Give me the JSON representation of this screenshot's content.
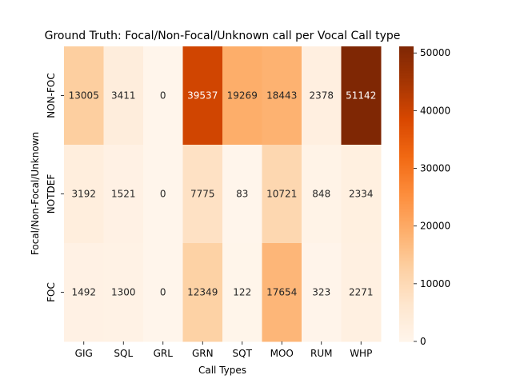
{
  "chart_data": {
    "type": "heatmap",
    "title": "Ground Truth: Focal/Non-Focal/Unknown call per Vocal Call type",
    "xlabel": "Call Types",
    "ylabel": "Focal/Non-Focal/Unknown",
    "categories": [
      "GIG",
      "SQL",
      "GRL",
      "GRN",
      "SQT",
      "MOO",
      "RUM",
      "WHP"
    ],
    "rows": [
      "NON-FOC",
      "NOTDEF",
      "FOC"
    ],
    "values": [
      [
        13005,
        3411,
        0,
        39537,
        19269,
        18443,
        2378,
        51142
      ],
      [
        3192,
        1521,
        0,
        7775,
        83,
        10721,
        848,
        2334
      ],
      [
        1492,
        1300,
        0,
        12349,
        122,
        17654,
        323,
        2271
      ]
    ],
    "colorbar": {
      "colormap": "Oranges",
      "range": [
        0,
        51142
      ],
      "ticks": [
        0,
        10000,
        20000,
        30000,
        40000,
        50000
      ]
    },
    "colors": {
      "low": "#fff5eb",
      "mid": "#fd8d3c",
      "high": "#7f2704"
    }
  }
}
